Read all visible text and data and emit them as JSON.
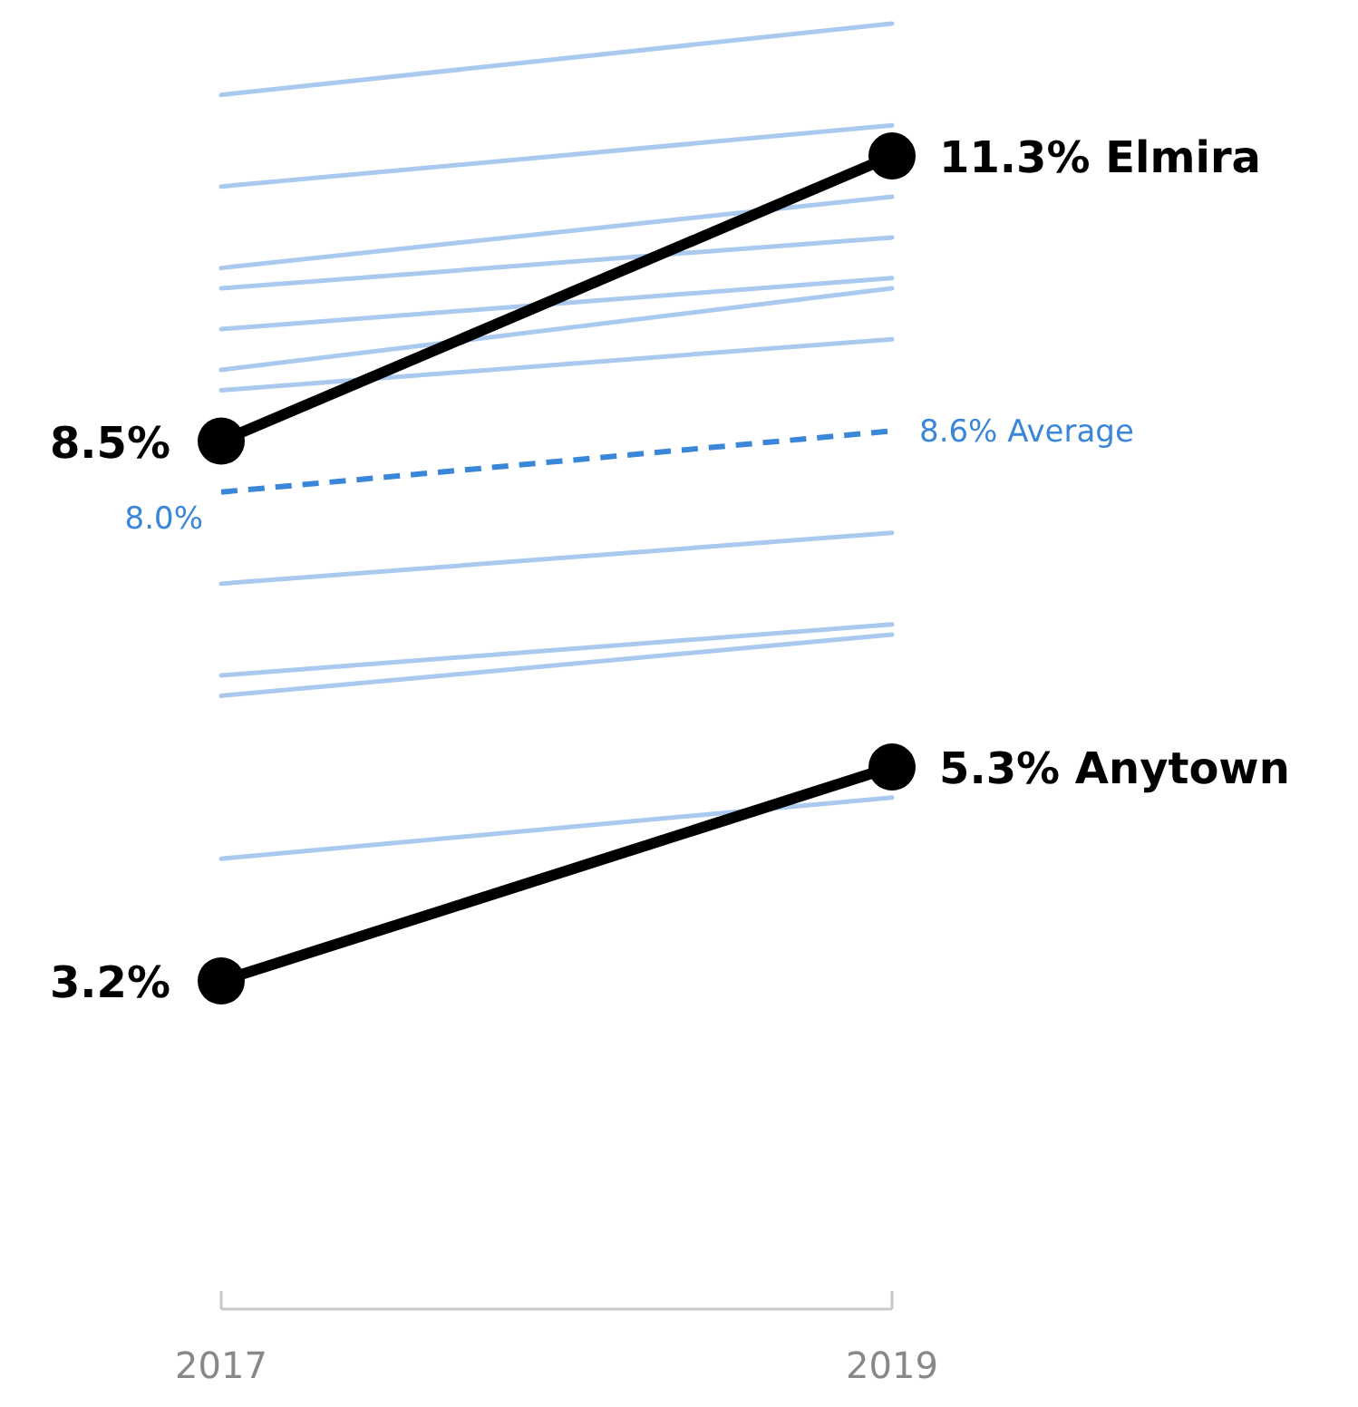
{
  "chart_data": {
    "type": "line",
    "categories": [
      "2017",
      "2019"
    ],
    "tick_labels": "x",
    "series": [
      {
        "color": "#a9c9ee",
        "values": [
          11.9,
          12.6
        ]
      },
      {
        "color": "#a9c9ee",
        "values": [
          11.0,
          11.6
        ]
      },
      {
        "color": "#a9c9ee",
        "values": [
          10.2,
          10.9
        ]
      },
      {
        "color": "#a9c9ee",
        "values": [
          10.0,
          10.5
        ]
      },
      {
        "color": "#a9c9ee",
        "values": [
          9.6,
          10.1
        ]
      },
      {
        "color": "#a9c9ee",
        "values": [
          9.2,
          10.0
        ]
      },
      {
        "color": "#a9c9ee",
        "values": [
          9.0,
          9.5
        ]
      },
      {
        "color": "#a9c9ee",
        "values": [
          7.1,
          7.6
        ]
      },
      {
        "color": "#a9c9ee",
        "values": [
          6.2,
          6.7
        ]
      },
      {
        "color": "#a9c9ee",
        "values": [
          6.0,
          6.6
        ]
      },
      {
        "color": "#a9c9ee",
        "values": [
          4.4,
          5.0
        ]
      },
      {
        "name": "Average",
        "color": "#3a86d8",
        "line_style": "dashed",
        "values": [
          8.0,
          8.6
        ],
        "value_labels": [
          "8.0%",
          "8.6%"
        ]
      },
      {
        "name": "Elmira",
        "color": "#000000",
        "marker": "circle",
        "values": [
          8.5,
          11.3
        ],
        "value_labels": [
          "8.5%",
          "11.3%"
        ]
      },
      {
        "name": "Anytown",
        "color": "#000000",
        "marker": "circle",
        "values": [
          3.2,
          5.3
        ],
        "value_labels": [
          "3.2%",
          "5.3%"
        ]
      }
    ]
  }
}
